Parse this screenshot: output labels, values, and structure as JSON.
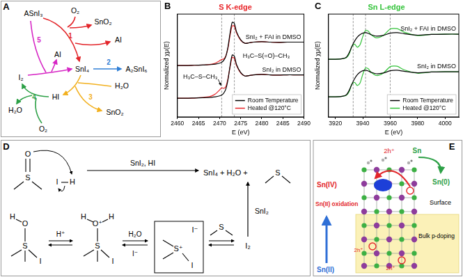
{
  "panel_a": {
    "label": "A",
    "species": [
      "ASnI₃",
      "O₂",
      "SnO₂",
      "AI",
      "SnI₄",
      "A₂SnI₆",
      "HI",
      "H₂O",
      "SnO₂",
      "I₂",
      "AI",
      "H₂O",
      "O₂"
    ],
    "steps": [
      {
        "number": "1",
        "color": "#e3262b"
      },
      {
        "number": "2",
        "color": "#2f7fd6"
      },
      {
        "number": "3",
        "color": "#f2b01e"
      },
      {
        "number": "4",
        "color": "#2ca046"
      },
      {
        "number": "5",
        "color": "#d624c4"
      }
    ]
  },
  "chart_data": [
    {
      "label": "B",
      "type": "line",
      "title": "S K-edge",
      "x_label": "E (eV)",
      "y_label": "Normalized χμ(E)",
      "x": [
        2460,
        2462,
        2464,
        2466,
        2467,
        2468,
        2469,
        2470,
        2470.5,
        2471,
        2471.5,
        2472,
        2472.5,
        2473,
        2473.5,
        2474,
        2475,
        2476,
        2477,
        2478,
        2480,
        2482,
        2484,
        2486,
        2488,
        2490
      ],
      "xlim": [
        2460,
        2490
      ],
      "xticks": [
        2460,
        2465,
        2470,
        2475,
        2480,
        2485,
        2490
      ],
      "ylim": [
        -0.8,
        3.6
      ],
      "tick_labels": "x",
      "grid": false,
      "legend": "lower right",
      "reference_lines": [
        2470.5,
        2473.5
      ],
      "annotations": [
        {
          "text": "H₃C–S–CH₃",
          "x": 2470.5
        },
        {
          "text": "H₃C–S(=O)–CH₃",
          "x": 2475
        }
      ],
      "groups": [
        {
          "label": "SnI₂ in DMSO",
          "series": [
            {
              "name": "Room Temperature",
              "color": "#000000",
              "values": [
                0,
                0,
                0.01,
                0.02,
                0.03,
                0.04,
                0.06,
                0.1,
                0.14,
                0.22,
                0.4,
                0.8,
                1.4,
                1.85,
                1.8,
                1.45,
                1.1,
                0.95,
                0.97,
                1.0,
                1.02,
                1.0,
                0.99,
                1.0,
                1.0,
                1.0
              ]
            },
            {
              "name": "Heated @120°C",
              "color": "#e8262a",
              "values": [
                0,
                0,
                0.01,
                0.03,
                0.05,
                0.09,
                0.18,
                0.35,
                0.45,
                0.42,
                0.5,
                0.85,
                1.35,
                1.75,
                1.7,
                1.4,
                1.08,
                0.95,
                0.97,
                1.0,
                1.02,
                1.0,
                0.99,
                1.0,
                1.0,
                1.0
              ]
            }
          ]
        },
        {
          "label": "SnI₂ + FAI in DMSO",
          "series": [
            {
              "name": "Room Temperature",
              "color": "#000000",
              "values": [
                1.4,
                1.4,
                1.41,
                1.42,
                1.43,
                1.44,
                1.46,
                1.5,
                1.54,
                1.62,
                1.8,
                2.2,
                2.8,
                3.25,
                3.2,
                2.85,
                2.5,
                2.35,
                2.37,
                2.4,
                2.42,
                2.4,
                2.39,
                2.4,
                2.4,
                2.4
              ]
            },
            {
              "name": "Heated @120°C",
              "color": "#e8262a",
              "values": [
                1.4,
                1.4,
                1.41,
                1.42,
                1.43,
                1.45,
                1.5,
                1.6,
                1.66,
                1.68,
                1.82,
                2.15,
                2.7,
                3.1,
                3.08,
                2.8,
                2.48,
                2.35,
                2.37,
                2.4,
                2.42,
                2.4,
                2.39,
                2.4,
                2.4,
                2.4
              ]
            }
          ]
        }
      ]
    },
    {
      "label": "C",
      "type": "line",
      "title": "Sn L-edge",
      "x_label": "E (eV)",
      "y_label": "Normalized χμ(E)",
      "x": [
        3915,
        3920,
        3925,
        3928,
        3930,
        3932,
        3934,
        3936,
        3938,
        3940,
        3942,
        3944,
        3946,
        3950,
        3955,
        3960,
        3965,
        3970,
        3980,
        3990,
        4000,
        4010
      ],
      "xlim": [
        3915,
        4010
      ],
      "xticks": [
        3920,
        3940,
        3960,
        3980,
        4000
      ],
      "ylim": [
        -0.8,
        3.3
      ],
      "tick_labels": "x",
      "grid": false,
      "legend": "lower right",
      "reference_lines": [
        3933,
        3942,
        3960
      ],
      "groups": [
        {
          "label": "SnI₂ in DMSO",
          "series": [
            {
              "name": "Room Temperature",
              "color": "#000000",
              "values": [
                0,
                0,
                0.02,
                0.08,
                0.25,
                0.5,
                0.72,
                0.88,
                0.98,
                1.04,
                1.06,
                1.03,
                0.98,
                0.92,
                0.95,
                1.04,
                1.06,
                1.02,
                0.96,
                0.99,
                1.0,
                1.0
              ]
            },
            {
              "name": "Heated @120°C",
              "color": "#33c33a",
              "values": [
                0,
                0,
                0.02,
                0.06,
                0.2,
                0.5,
                0.58,
                0.45,
                0.55,
                0.9,
                1.15,
                1.12,
                0.98,
                0.85,
                0.95,
                1.2,
                1.22,
                1.08,
                0.94,
                0.99,
                1.0,
                1.0
              ]
            }
          ]
        },
        {
          "label": "SnI₂ + FAI in DMSO",
          "series": [
            {
              "name": "Room Temperature",
              "color": "#000000",
              "values": [
                1.5,
                1.5,
                1.52,
                1.58,
                1.75,
                2.0,
                2.22,
                2.38,
                2.48,
                2.54,
                2.56,
                2.53,
                2.48,
                2.42,
                2.45,
                2.54,
                2.56,
                2.52,
                2.46,
                2.49,
                2.5,
                2.5
              ]
            },
            {
              "name": "Heated @120°C",
              "color": "#33c33a",
              "values": [
                1.5,
                1.5,
                1.52,
                1.56,
                1.7,
                2.0,
                2.1,
                1.98,
                2.08,
                2.4,
                2.65,
                2.62,
                2.48,
                2.35,
                2.45,
                2.7,
                2.72,
                2.58,
                2.44,
                2.49,
                2.5,
                2.5
              ]
            }
          ]
        }
      ]
    }
  ],
  "panel_d": {
    "label": "D",
    "texts": [
      "O",
      "S",
      "I",
      "H",
      "SnI₂, HI",
      "SnI₄ + H₂O +",
      "S",
      "H",
      "O",
      "S",
      "I",
      "H⁺",
      "H",
      "O⁺",
      "H",
      "S",
      "I",
      "H₂O",
      "I⁻",
      "I⁻",
      "S⁺",
      "I",
      "S",
      "I₂",
      "SnI₂"
    ]
  },
  "panel_e": {
    "label": "E",
    "texts": [
      "Sn(IV)",
      "2h⁺",
      "Sn",
      "Sn(0)",
      "Surface",
      "Sn(II) oxidation",
      "Bulk p-doping",
      "Sn(II)",
      "2h⁺",
      "2h⁺"
    ]
  }
}
